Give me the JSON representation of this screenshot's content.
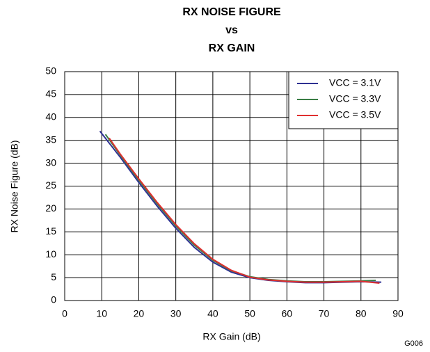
{
  "chart_data": {
    "type": "line",
    "title": [
      "RX NOISE FIGURE",
      "vs",
      "RX GAIN"
    ],
    "xlabel": "RX Gain (dB)",
    "ylabel": "RX Noise Figure (dB)",
    "annotation": "G006",
    "xlim": [
      0,
      90
    ],
    "xticks": [
      0,
      10,
      20,
      30,
      40,
      50,
      60,
      70,
      80,
      90
    ],
    "ylim": [
      0,
      50
    ],
    "yticks": [
      0,
      5,
      10,
      15,
      20,
      25,
      30,
      35,
      40,
      45,
      50
    ],
    "grid": true,
    "legend": "upper right",
    "series": [
      {
        "name": "VCC = 3.1V",
        "color": "#2e3192",
        "x": [
          9.5,
          15,
          20,
          25,
          30,
          35,
          40,
          45,
          50,
          55,
          60,
          65,
          70,
          75,
          80,
          85.5
        ],
        "values": [
          37,
          31.3,
          25.8,
          20.6,
          15.8,
          11.6,
          8.4,
          6.2,
          5,
          4.4,
          4.1,
          3.9,
          3.9,
          4,
          4.1,
          4
        ]
      },
      {
        "name": "VCC = 3.3V",
        "color": "#3a7d44",
        "x": [
          11,
          15,
          20,
          25,
          30,
          35,
          40,
          45,
          50,
          55,
          60,
          65,
          70,
          75,
          80,
          84
        ],
        "values": [
          36.3,
          31.8,
          26.3,
          21.1,
          16.3,
          12.1,
          8.8,
          6.5,
          5.2,
          4.6,
          4.3,
          4.1,
          4.1,
          4.2,
          4.3,
          4.4
        ]
      },
      {
        "name": "VCC = 3.5V",
        "color": "#e03030",
        "x": [
          12,
          15,
          20,
          25,
          30,
          35,
          40,
          45,
          50,
          55,
          60,
          65,
          70,
          75,
          80,
          85
        ],
        "values": [
          35.5,
          32,
          26.6,
          21.4,
          16.6,
          12.4,
          9,
          6.6,
          5.1,
          4.5,
          4.2,
          4,
          4,
          4.1,
          4.2,
          3.8
        ]
      }
    ]
  }
}
